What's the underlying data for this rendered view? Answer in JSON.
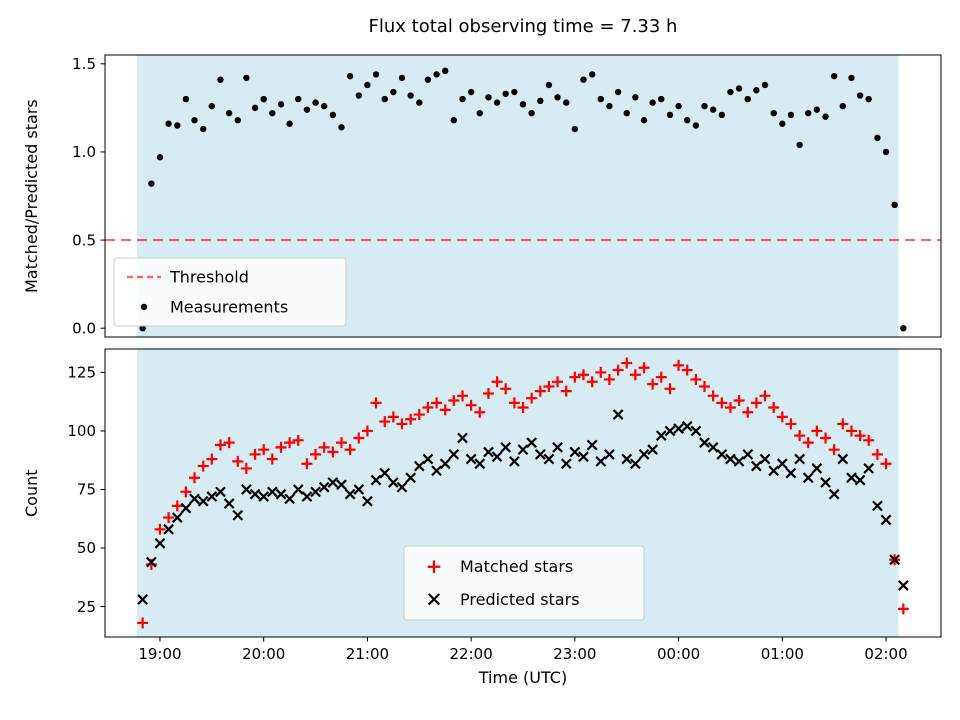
{
  "title": "Flux total observing time = 7.33 h",
  "chart_data": [
    {
      "type": "scatter",
      "panel": "top",
      "title": "Flux total observing time = 7.33 h",
      "ylabel": "Matched/Predicted stars",
      "ylim": [
        -0.05,
        1.55
      ],
      "yticks": [
        0,
        0.5,
        1.0,
        1.5
      ],
      "ytick_labels": [
        "0.0",
        "0.5",
        "1.0",
        "1.5"
      ],
      "xlim": [
        18.47,
        26.53
      ],
      "xticks": [
        19,
        20,
        21,
        22,
        23,
        24,
        25,
        26
      ],
      "xtick_labels": [
        "19:00",
        "20:00",
        "21:00",
        "22:00",
        "23:00",
        "00:00",
        "01:00",
        "02:00"
      ],
      "show_xtick_labels": false,
      "grid": false,
      "shade_span": [
        18.78,
        26.12
      ],
      "shade_color": "#add8e6",
      "threshold": {
        "value": 0.5,
        "label": "Threshold",
        "color": "#ff0000",
        "dashed": true
      },
      "legend_position": "lower left",
      "legend": [
        {
          "label": "Threshold",
          "sample": "dash",
          "color": "#ff0000"
        },
        {
          "label": "Measurements",
          "sample": "dot",
          "color": "#000000"
        }
      ],
      "x": [
        18.833,
        18.917,
        19.0,
        19.083,
        19.167,
        19.25,
        19.333,
        19.417,
        19.5,
        19.583,
        19.667,
        19.75,
        19.833,
        19.917,
        20.0,
        20.083,
        20.167,
        20.25,
        20.333,
        20.417,
        20.5,
        20.583,
        20.667,
        20.75,
        20.833,
        20.917,
        21.0,
        21.083,
        21.167,
        21.25,
        21.333,
        21.417,
        21.5,
        21.583,
        21.667,
        21.75,
        21.833,
        21.917,
        22.0,
        22.083,
        22.167,
        22.25,
        22.333,
        22.417,
        22.5,
        22.583,
        22.667,
        22.75,
        22.833,
        22.917,
        23.0,
        23.083,
        23.167,
        23.25,
        23.333,
        23.417,
        23.5,
        23.583,
        23.667,
        23.75,
        23.833,
        23.917,
        24.0,
        24.083,
        24.167,
        24.25,
        24.333,
        24.417,
        24.5,
        24.583,
        24.667,
        24.75,
        24.833,
        24.917,
        25.0,
        25.083,
        25.167,
        25.25,
        25.333,
        25.417,
        25.5,
        25.583,
        25.667,
        25.75,
        25.833,
        25.917,
        26.0,
        26.083,
        26.167
      ],
      "series": [
        {
          "name": "Measurements",
          "marker": "dot",
          "color": "#000000",
          "y": [
            0.0,
            0.82,
            0.97,
            1.16,
            1.15,
            1.3,
            1.18,
            1.13,
            1.26,
            1.41,
            1.22,
            1.18,
            1.42,
            1.25,
            1.3,
            1.22,
            1.27,
            1.16,
            1.3,
            1.24,
            1.28,
            1.26,
            1.21,
            1.14,
            1.43,
            1.32,
            1.38,
            1.44,
            1.3,
            1.34,
            1.42,
            1.32,
            1.28,
            1.41,
            1.44,
            1.46,
            1.18,
            1.3,
            1.34,
            1.22,
            1.31,
            1.28,
            1.33,
            1.34,
            1.27,
            1.22,
            1.29,
            1.38,
            1.31,
            1.28,
            1.13,
            1.41,
            1.44,
            1.3,
            1.26,
            1.34,
            1.22,
            1.31,
            1.18,
            1.28,
            1.3,
            1.21,
            1.26,
            1.18,
            1.15,
            1.26,
            1.24,
            1.21,
            1.34,
            1.36,
            1.3,
            1.35,
            1.38,
            1.22,
            1.16,
            1.21,
            1.04,
            1.22,
            1.24,
            1.2,
            1.43,
            1.26,
            1.42,
            1.32,
            1.3,
            1.08,
            1.0,
            0.7,
            0.0
          ]
        }
      ]
    },
    {
      "type": "scatter",
      "panel": "bottom",
      "xlabel": "Time (UTC)",
      "ylabel": "Count",
      "ylim": [
        12,
        135
      ],
      "yticks": [
        25,
        50,
        75,
        100,
        125
      ],
      "ytick_labels": [
        "25",
        "50",
        "75",
        "100",
        "125"
      ],
      "xlim": [
        18.47,
        26.53
      ],
      "xticks": [
        19,
        20,
        21,
        22,
        23,
        24,
        25,
        26
      ],
      "xtick_labels": [
        "19:00",
        "20:00",
        "21:00",
        "22:00",
        "23:00",
        "00:00",
        "01:00",
        "02:00"
      ],
      "show_xtick_labels": true,
      "grid": false,
      "shade_span": [
        18.78,
        26.12
      ],
      "shade_color": "#add8e6",
      "legend_position": "lower center",
      "legend": [
        {
          "label": "Matched stars",
          "sample": "plus",
          "color": "#ff0000"
        },
        {
          "label": "Predicted stars",
          "sample": "x",
          "color": "#000000"
        }
      ],
      "x": [
        18.833,
        18.917,
        19.0,
        19.083,
        19.167,
        19.25,
        19.333,
        19.417,
        19.5,
        19.583,
        19.667,
        19.75,
        19.833,
        19.917,
        20.0,
        20.083,
        20.167,
        20.25,
        20.333,
        20.417,
        20.5,
        20.583,
        20.667,
        20.75,
        20.833,
        20.917,
        21.0,
        21.083,
        21.167,
        21.25,
        21.333,
        21.417,
        21.5,
        21.583,
        21.667,
        21.75,
        21.833,
        21.917,
        22.0,
        22.083,
        22.167,
        22.25,
        22.333,
        22.417,
        22.5,
        22.583,
        22.667,
        22.75,
        22.833,
        22.917,
        23.0,
        23.083,
        23.167,
        23.25,
        23.333,
        23.417,
        23.5,
        23.583,
        23.667,
        23.75,
        23.833,
        23.917,
        24.0,
        24.083,
        24.167,
        24.25,
        24.333,
        24.417,
        24.5,
        24.583,
        24.667,
        24.75,
        24.833,
        24.917,
        25.0,
        25.083,
        25.167,
        25.25,
        25.333,
        25.417,
        25.5,
        25.583,
        25.667,
        25.75,
        25.833,
        25.917,
        26.0,
        26.083,
        26.167
      ],
      "series": [
        {
          "name": "Matched stars",
          "marker": "plus",
          "color": "#ff0000",
          "y": [
            18,
            43,
            58,
            63,
            68,
            74,
            80,
            85,
            88,
            94,
            95,
            87,
            84,
            90,
            92,
            88,
            93,
            95,
            96,
            86,
            90,
            93,
            91,
            95,
            92,
            97,
            100,
            112,
            104,
            106,
            103,
            105,
            107,
            110,
            112,
            109,
            113,
            115,
            111,
            108,
            116,
            121,
            118,
            112,
            110,
            114,
            117,
            119,
            121,
            117,
            123,
            124,
            121,
            125,
            122,
            126,
            129,
            124,
            127,
            120,
            123,
            118,
            128,
            126,
            122,
            119,
            115,
            112,
            110,
            113,
            108,
            112,
            115,
            110,
            106,
            103,
            98,
            95,
            100,
            97,
            92,
            103,
            100,
            98,
            96,
            90,
            86,
            45,
            24
          ]
        },
        {
          "name": "Predicted stars",
          "marker": "x",
          "color": "#000000",
          "y": [
            28,
            44,
            52,
            58,
            63,
            67,
            71,
            70,
            72,
            74,
            69,
            64,
            75,
            73,
            72,
            74,
            73,
            71,
            75,
            72,
            74,
            76,
            78,
            77,
            73,
            75,
            70,
            79,
            82,
            78,
            76,
            80,
            85,
            88,
            83,
            86,
            90,
            97,
            88,
            86,
            91,
            89,
            93,
            87,
            92,
            95,
            90,
            88,
            93,
            86,
            91,
            89,
            94,
            87,
            90,
            107,
            88,
            86,
            90,
            92,
            98,
            100,
            101,
            102,
            100,
            95,
            93,
            90,
            88,
            87,
            90,
            85,
            88,
            83,
            86,
            82,
            88,
            80,
            84,
            78,
            73,
            88,
            80,
            79,
            84,
            68,
            62,
            45,
            34
          ]
        }
      ]
    }
  ]
}
